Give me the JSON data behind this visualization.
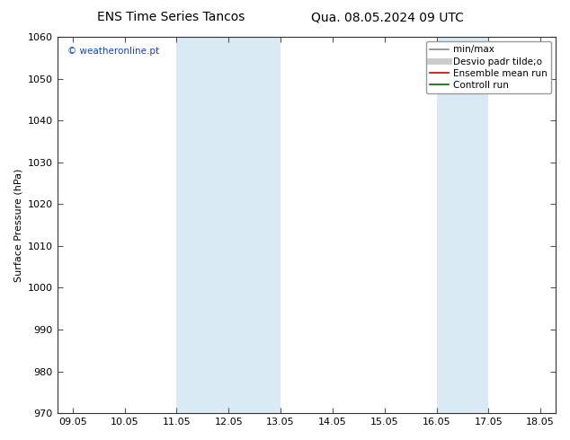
{
  "title_left": "ENS Time Series Tancos",
  "title_right": "Qua. 08.05.2024 09 UTC",
  "ylabel": "Surface Pressure (hPa)",
  "ylim": [
    970,
    1060
  ],
  "yticks": [
    970,
    980,
    990,
    1000,
    1010,
    1020,
    1030,
    1040,
    1050,
    1060
  ],
  "xtick_labels": [
    "09.05",
    "10.05",
    "11.05",
    "12.05",
    "13.05",
    "14.05",
    "15.05",
    "16.05",
    "17.05",
    "18.05"
  ],
  "shade_bands": [
    {
      "xmin": 2.0,
      "xmax": 4.0
    },
    {
      "xmin": 7.0,
      "xmax": 8.0
    }
  ],
  "shade_color": "#daeaf5",
  "watermark": "© weatheronline.pt",
  "watermark_color": "#1144bb",
  "legend_items": [
    {
      "label": "min/max",
      "color": "#888888",
      "lw": 1.2,
      "style": "-"
    },
    {
      "label": "Desvio padr tilde;o",
      "color": "#cccccc",
      "lw": 5,
      "style": "-"
    },
    {
      "label": "Ensemble mean run",
      "color": "#cc0000",
      "lw": 1.2,
      "style": "-"
    },
    {
      "label": "Controll run",
      "color": "#006600",
      "lw": 1.2,
      "style": "-"
    }
  ],
  "background_color": "#ffffff",
  "title_fontsize": 10,
  "tick_fontsize": 8,
  "ylabel_fontsize": 8,
  "legend_fontsize": 7.5
}
